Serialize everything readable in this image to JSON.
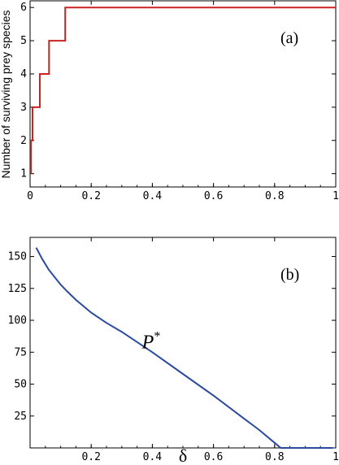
{
  "chart_data": [
    {
      "panel_label": "(a)",
      "type": "line",
      "title": "",
      "xlabel": "",
      "ylabel": "Number of surviving prey species",
      "xlim": [
        0,
        1
      ],
      "ylim": [
        0.6,
        6.2
      ],
      "xticks": [
        0,
        0.2,
        0.4,
        0.6,
        0.8,
        1
      ],
      "xtick_labels": [
        "0",
        "0.2",
        "0.4",
        "0.6",
        "0.8",
        "1"
      ],
      "yticks": [
        1,
        2,
        3,
        4,
        5,
        6
      ],
      "ytick_labels": [
        "1",
        "2",
        "3",
        "4",
        "5",
        "6"
      ],
      "grid": false,
      "color": "#cc2222",
      "series": [
        {
          "x": [
            0.003,
            0.003,
            0.008,
            0.008,
            0.013,
            0.013,
            0.032,
            0.032,
            0.062,
            0.062,
            0.115,
            0.115,
            1.0
          ],
          "y": [
            1,
            2,
            2,
            3,
            3,
            3,
            3,
            4,
            4,
            5,
            5,
            6,
            6
          ]
        }
      ]
    },
    {
      "panel_label": "(b)",
      "type": "line",
      "title": "",
      "xlabel": "δ",
      "ylabel": "",
      "xlim": [
        0,
        1
      ],
      "ylim": [
        0,
        165
      ],
      "xticks": [
        0.2,
        0.4,
        0.6,
        0.8,
        1
      ],
      "xtick_labels": [
        "0.2",
        "0.4",
        "0.6",
        "0.8",
        "1"
      ],
      "yticks": [
        25,
        50,
        75,
        100,
        125,
        150
      ],
      "ytick_labels": [
        "25",
        "50",
        "75",
        "100",
        "125",
        "150"
      ],
      "grid": false,
      "color": "#2a4aa0",
      "annotation": {
        "text": "P",
        "sup": "*",
        "x": 0.43,
        "y": 83
      },
      "series": [
        {
          "x": [
            0.02,
            0.04,
            0.06,
            0.08,
            0.1,
            0.12,
            0.15,
            0.2,
            0.25,
            0.3,
            0.4,
            0.5,
            0.6,
            0.7,
            0.75,
            0.8,
            0.82,
            0.85,
            0.9,
            0.95,
            0.99
          ],
          "y": [
            157,
            148,
            140,
            134,
            128,
            123,
            116,
            106,
            98,
            91,
            75,
            58,
            41,
            23,
            14,
            4,
            0,
            0,
            0,
            0,
            0
          ]
        }
      ]
    }
  ]
}
